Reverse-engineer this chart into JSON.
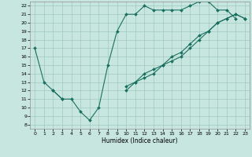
{
  "xlabel": "Humidex (Indice chaleur)",
  "background_color": "#c8e6e0",
  "grid_color": "#a0c8c0",
  "line_color": "#1a7060",
  "xlim": [
    -0.5,
    23.5
  ],
  "ylim": [
    7.5,
    22.5
  ],
  "xticks": [
    0,
    1,
    2,
    3,
    4,
    5,
    6,
    7,
    8,
    9,
    10,
    11,
    12,
    13,
    14,
    15,
    16,
    17,
    18,
    19,
    20,
    21,
    22,
    23
  ],
  "yticks": [
    8,
    9,
    10,
    11,
    12,
    13,
    14,
    15,
    16,
    17,
    18,
    19,
    20,
    21,
    22
  ],
  "line1_x": [
    0,
    1,
    2,
    3,
    4,
    5,
    6,
    7,
    8,
    9,
    10,
    11,
    12,
    13,
    14,
    15,
    16,
    17,
    18,
    19,
    20,
    21,
    22
  ],
  "line1_y": [
    17,
    13,
    12,
    11,
    11,
    9.5,
    8.5,
    10,
    15,
    19,
    21,
    21,
    22,
    21.5,
    21.5,
    21.5,
    21.5,
    22,
    22.5,
    22.5,
    21.5,
    21.5,
    20.5
  ],
  "line2_x": [
    2,
    3,
    10,
    11,
    12,
    13,
    14,
    15,
    16,
    17,
    18,
    19,
    20,
    21,
    22,
    23
  ],
  "line2_y": [
    12,
    11,
    12.5,
    13,
    14,
    14.5,
    15,
    16,
    16.5,
    17.5,
    18.5,
    19,
    20,
    20.5,
    21,
    20.5
  ],
  "line3_x": [
    10,
    11,
    12,
    13,
    14,
    15,
    16,
    17,
    18,
    19,
    20,
    21,
    22,
    23
  ],
  "line3_y": [
    12,
    13,
    13.5,
    14,
    15,
    15.5,
    16,
    17,
    18,
    19,
    20,
    20.5,
    21,
    20.5
  ]
}
